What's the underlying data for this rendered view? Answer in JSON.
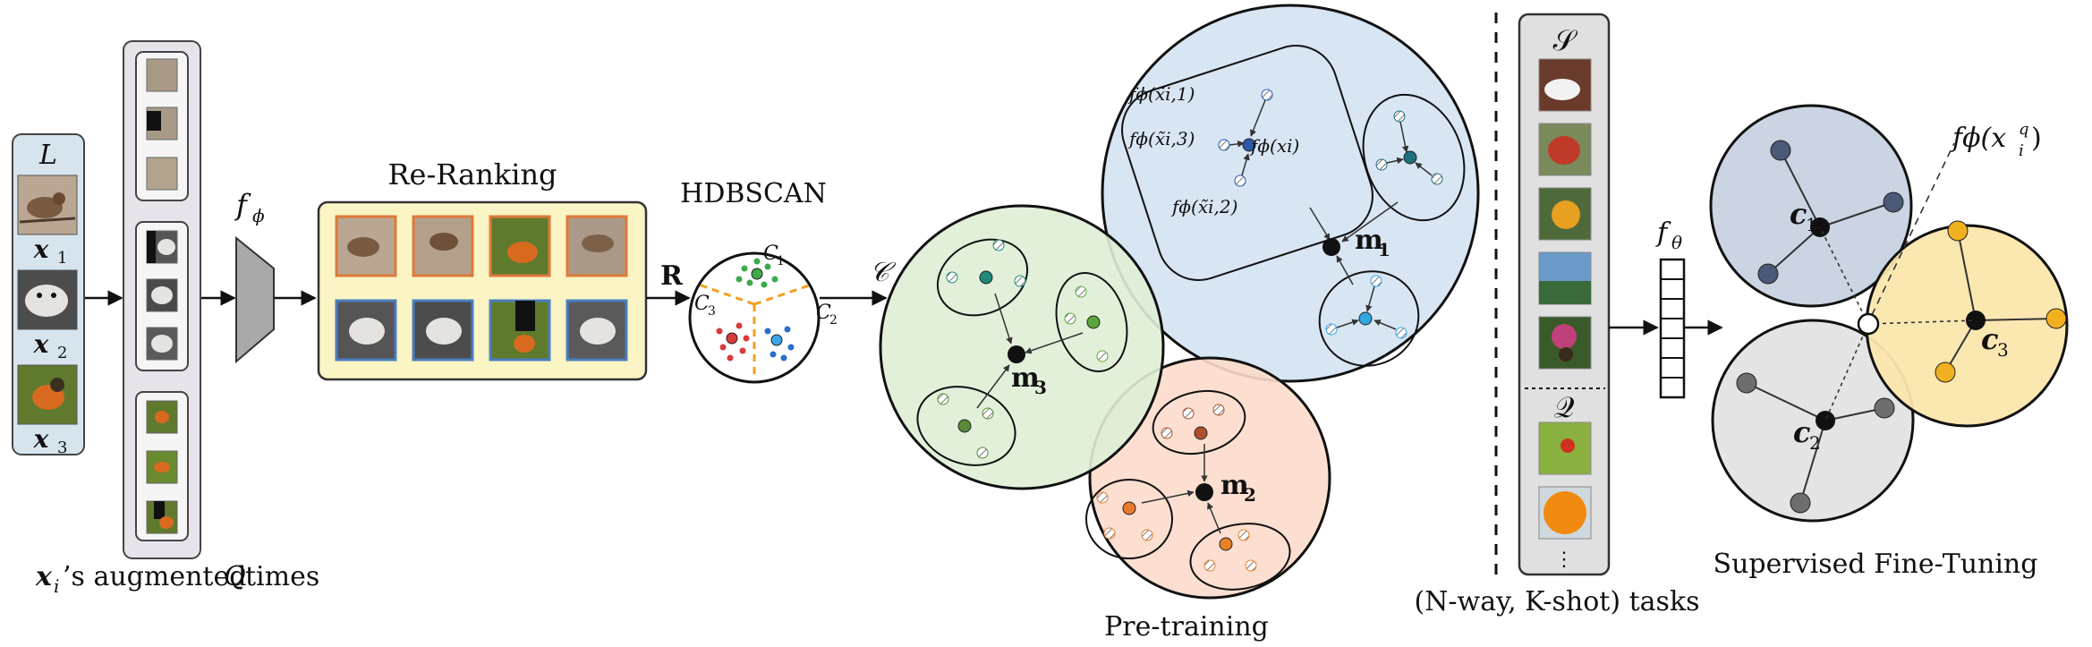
{
  "input": {
    "title": "L",
    "x1": "x",
    "x1_sub": "1",
    "x2": "x",
    "x2_sub": "2",
    "x3": "x",
    "x3_sub": "3",
    "caption_x": "x",
    "caption_i": "i",
    "caption_rest": "’s augmented ",
    "caption_q": "Q",
    "caption_times": " times"
  },
  "encoder": {
    "f": "f",
    "sub": "ϕ"
  },
  "reranking": {
    "title": "Re-Ranking",
    "R": "R"
  },
  "hdbscan": {
    "title": "HDBSCAN",
    "c1": "C",
    "c1_sub": "1",
    "c2": "C",
    "c2_sub": "2",
    "c3": "C",
    "c3_sub": "3",
    "calC": "𝒞"
  },
  "pretraining": {
    "caption": "Pre-training",
    "m1": "m",
    "m1_sub": "1",
    "m2": "m",
    "m2_sub": "2",
    "m3": "m",
    "m3_sub": "3",
    "f_xi1": "fϕ(x̃i,1)",
    "f_xi2": "fϕ(x̃i,2)",
    "f_xi3": "fϕ(x̃i,3)",
    "f_xi": "fϕ(xi)"
  },
  "tasks": {
    "S": "𝒮",
    "Q": "𝒬",
    "caption": "(N-way, K-shot) tasks",
    "dots": "⋮"
  },
  "finetune": {
    "f": "f",
    "sub": "θ",
    "caption": "Supervised Fine-Tuning",
    "c1": "c",
    "c1_sub": "1",
    "c2": "c",
    "c2_sub": "2",
    "c3": "c",
    "c3_sub": "3",
    "query": "fϕ(x",
    "query_sup": "q",
    "query_sub": "i",
    "query_close": ")"
  },
  "colors": {
    "input_panel": "#d6e4ee",
    "aug_panel": "#e8e2ea",
    "rerank_panel": "#fbf4c4",
    "green_cluster": "#dfeed6",
    "blue_cluster": "#d5e3f2",
    "orange_cluster": "#fcdccb",
    "navy_proto": "#c7d2e0",
    "gray_proto": "#e3e3e3",
    "yellow_proto": "#fbe6ac"
  }
}
